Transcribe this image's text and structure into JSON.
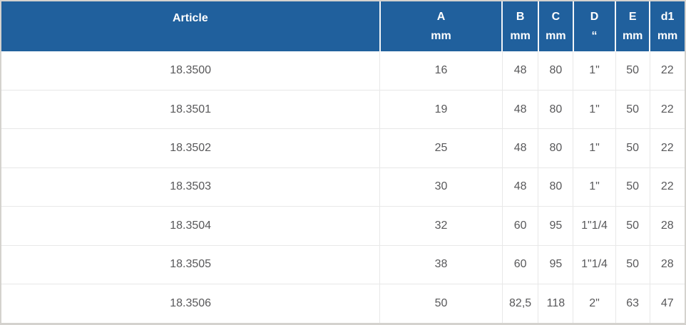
{
  "colors": {
    "header_bg": "#20609d",
    "header_text": "#ffffff",
    "body_text": "#58585a",
    "grid_line": "#e8e8e8",
    "outer_border": "#d4d2ce"
  },
  "table": {
    "columns": [
      {
        "key": "article",
        "label": "Article",
        "unit": ""
      },
      {
        "key": "a",
        "label": "A",
        "unit": "mm"
      },
      {
        "key": "b",
        "label": "B",
        "unit": "mm"
      },
      {
        "key": "c",
        "label": "C",
        "unit": "mm"
      },
      {
        "key": "d",
        "label": "D",
        "unit": "“"
      },
      {
        "key": "e",
        "label": "E",
        "unit": "mm"
      },
      {
        "key": "d1",
        "label": "d1",
        "unit": "mm"
      }
    ],
    "rows": [
      {
        "article": "18.3500",
        "values": [
          "16",
          "48",
          "80",
          "1\"",
          "50",
          "22"
        ]
      },
      {
        "article": "18.3501",
        "values": [
          "19",
          "48",
          "80",
          "1\"",
          "50",
          "22"
        ]
      },
      {
        "article": "18.3502",
        "values": [
          "25",
          "48",
          "80",
          "1\"",
          "50",
          "22"
        ]
      },
      {
        "article": "18.3503",
        "values": [
          "30",
          "48",
          "80",
          "1\"",
          "50",
          "22"
        ]
      },
      {
        "article": "18.3504",
        "values": [
          "32",
          "60",
          "95",
          "1\"1/4",
          "50",
          "28"
        ]
      },
      {
        "article": "18.3505",
        "values": [
          "38",
          "60",
          "95",
          "1\"1/4",
          "50",
          "28"
        ]
      },
      {
        "article": "18.3506",
        "values": [
          "50",
          "82,5",
          "118",
          "2\"",
          "63",
          "47"
        ]
      }
    ]
  },
  "chart_data": {
    "type": "table",
    "title": "",
    "columns": [
      "Article",
      "A mm",
      "B mm",
      "C mm",
      "D “",
      "E mm",
      "d1 mm"
    ],
    "rows": [
      [
        "18.3500",
        "16",
        "48",
        "80",
        "1\"",
        "50",
        "22"
      ],
      [
        "18.3501",
        "19",
        "48",
        "80",
        "1\"",
        "50",
        "22"
      ],
      [
        "18.3502",
        "25",
        "48",
        "80",
        "1\"",
        "50",
        "22"
      ],
      [
        "18.3503",
        "30",
        "48",
        "80",
        "1\"",
        "50",
        "22"
      ],
      [
        "18.3504",
        "32",
        "60",
        "95",
        "1\"1/4",
        "50",
        "28"
      ],
      [
        "18.3505",
        "38",
        "60",
        "95",
        "1\"1/4",
        "50",
        "28"
      ],
      [
        "18.3506",
        "50",
        "82,5",
        "118",
        "2\"",
        "63",
        "47"
      ]
    ]
  }
}
